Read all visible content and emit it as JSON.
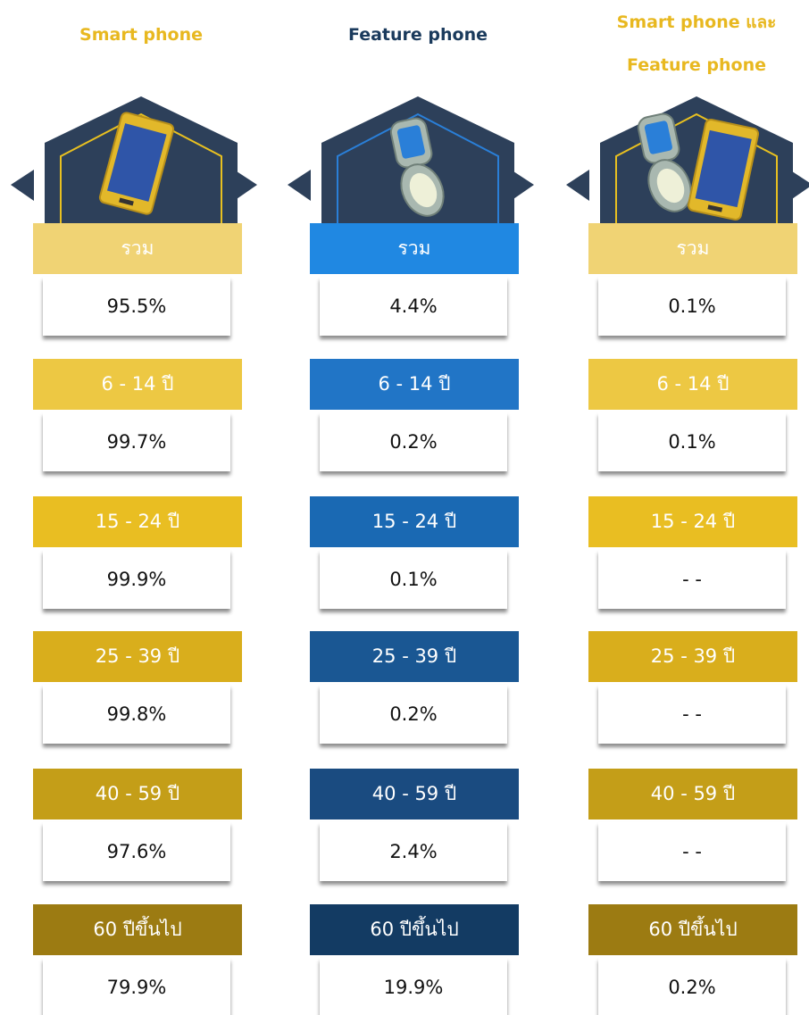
{
  "columns": [
    {
      "title": [
        "Smart phone"
      ],
      "rows": [
        {
          "label": "รวม",
          "value": "95.5%"
        },
        {
          "label": "6 - 14 ปี",
          "value": "99.7%"
        },
        {
          "label": "15 - 24 ปี",
          "value": "99.9%"
        },
        {
          "label": "25 - 39 ปี",
          "value": "99.8%"
        },
        {
          "label": "40 - 59 ปี",
          "value": "97.6%"
        },
        {
          "label": "60 ปีขึ้นไป",
          "value": "79.9%"
        }
      ]
    },
    {
      "title": [
        "Feature phone"
      ],
      "rows": [
        {
          "label": "รวม",
          "value": "4.4%"
        },
        {
          "label": "6 - 14 ปี",
          "value": "0.2%"
        },
        {
          "label": "15 - 24 ปี",
          "value": "0.1%"
        },
        {
          "label": "25 - 39 ปี",
          "value": "0.2%"
        },
        {
          "label": "40 - 59 ปี",
          "value": "2.4%"
        },
        {
          "label": "60 ปีขึ้นไป",
          "value": "19.9%"
        }
      ]
    },
    {
      "title": [
        "Smart phone และ",
        "Feature phone"
      ],
      "rows": [
        {
          "label": "รวม",
          "value": "0.1%"
        },
        {
          "label": "6 - 14 ปี",
          "value": "0.1%"
        },
        {
          "label": "15 - 24 ปี",
          "value": "- -"
        },
        {
          "label": "25 - 39 ปี",
          "value": "- -"
        },
        {
          "label": "40 - 59 ปี",
          "value": "- -"
        },
        {
          "label": "60 ปีขึ้นไป",
          "value": "0.2%"
        }
      ]
    }
  ]
}
